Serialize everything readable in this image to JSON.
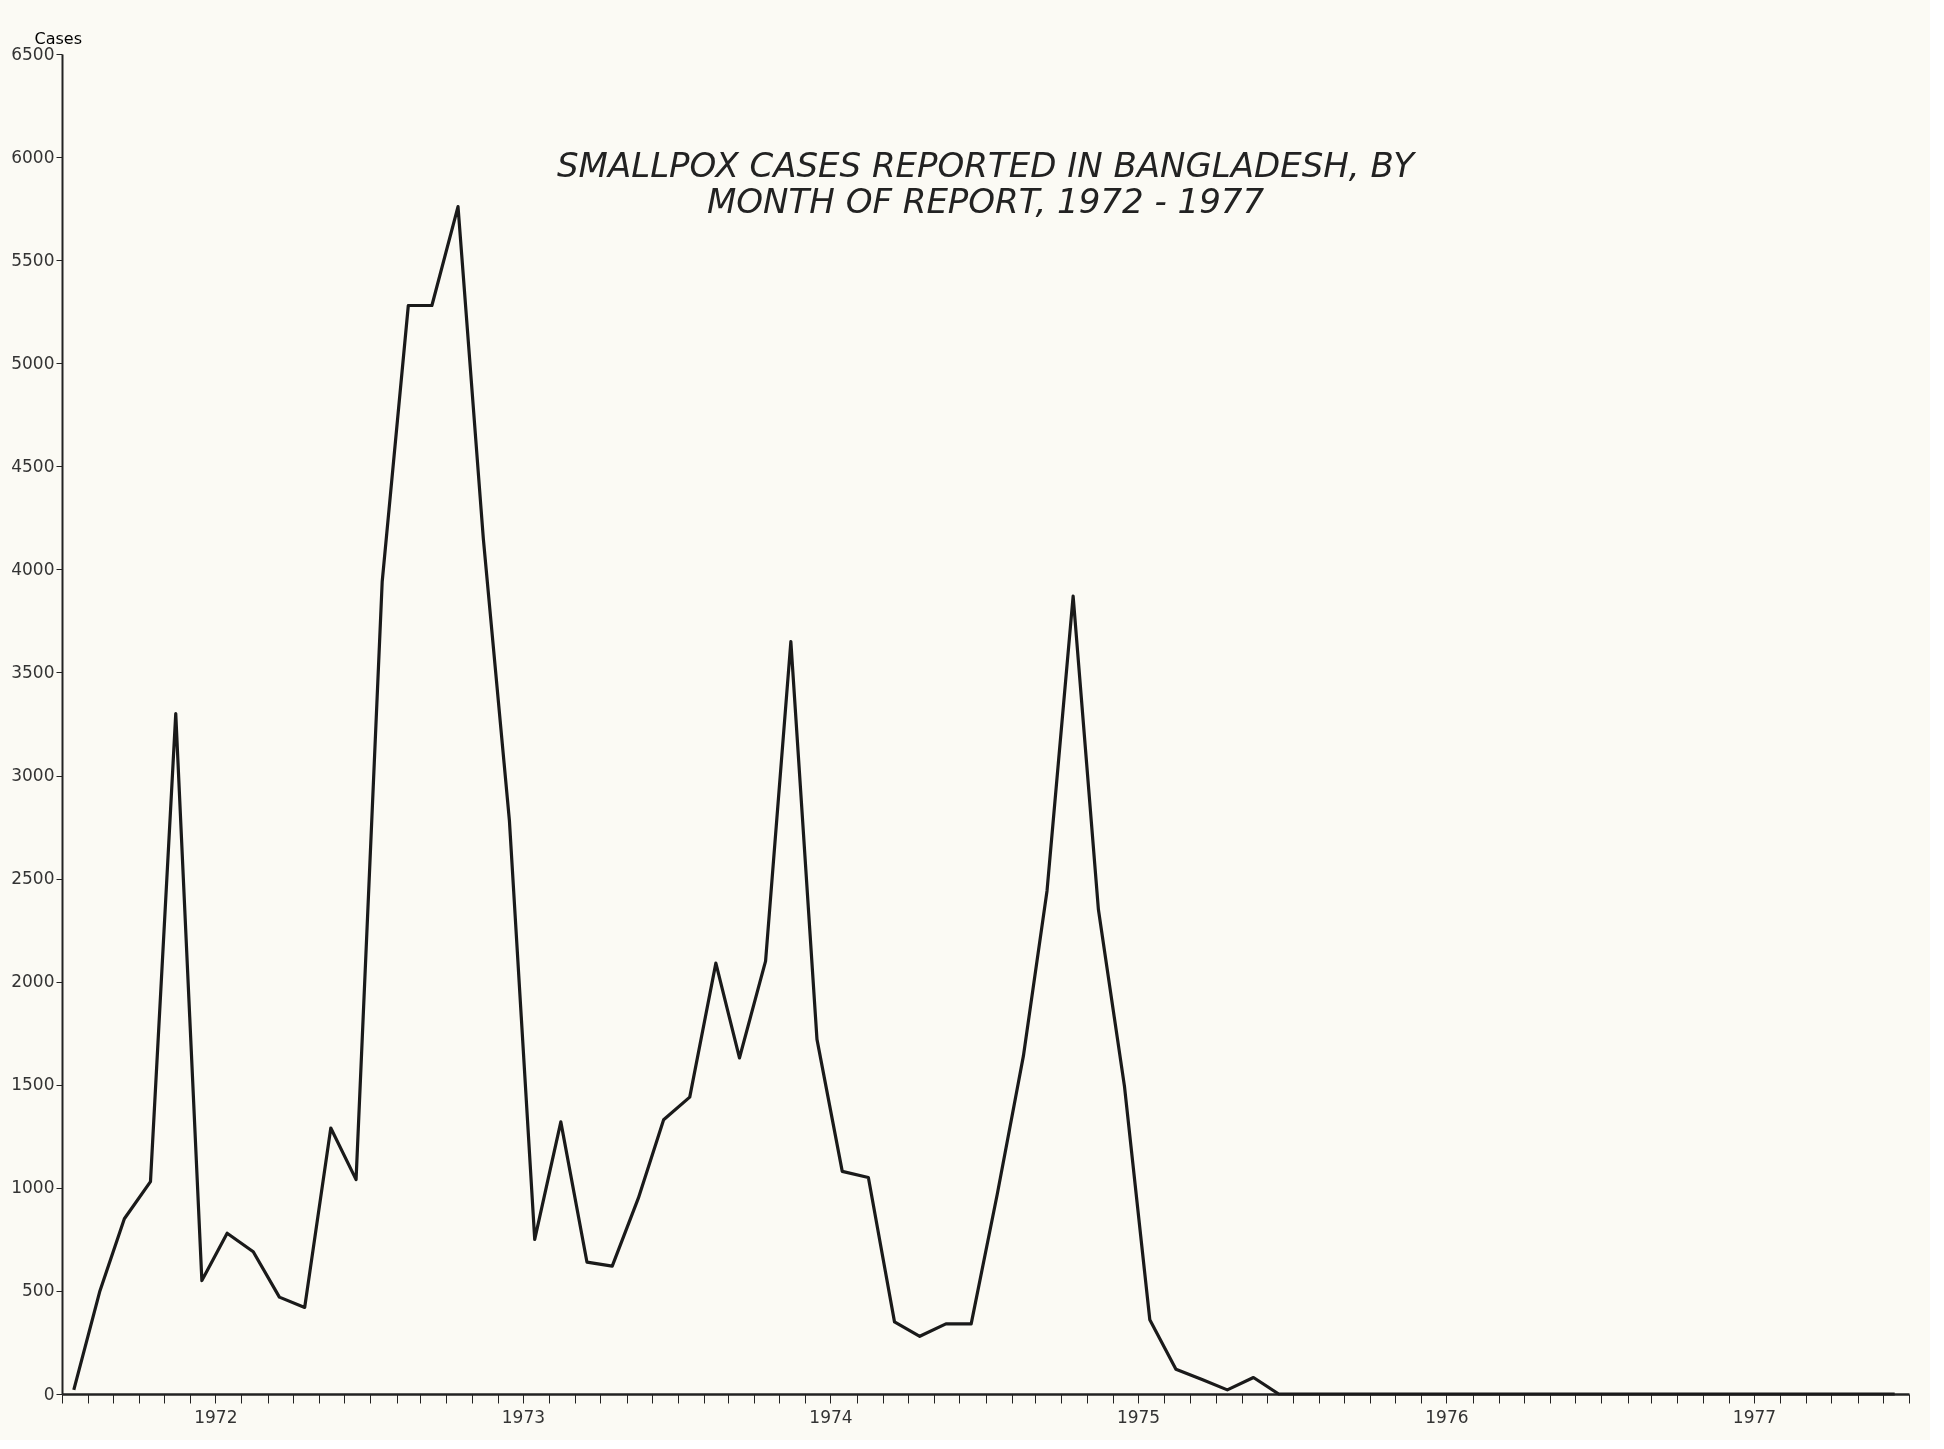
{
  "chart_data": {
    "type": "line",
    "title": [
      "SMALLPOX CASES REPORTED IN BANGLADESH, BY",
      "MONTH OF REPORT, 1972 - 1977"
    ],
    "ylabel": "Cases",
    "x": [
      "1972-01-15",
      "1972-02-15",
      "1972-03-15",
      "1972-04-15",
      "1972-05-15",
      "1972-06-15",
      "1972-07-15",
      "1972-08-15",
      "1972-09-15",
      "1972-10-15",
      "1972-11-15",
      "1972-12-15",
      "1973-01-15",
      "1973-02-15",
      "1973-03-15",
      "1973-04-15",
      "1973-05-15",
      "1973-06-15",
      "1973-07-15",
      "1973-08-15",
      "1973-09-15",
      "1973-10-15",
      "1973-11-15",
      "1973-12-15",
      "1974-01-15",
      "1974-02-15",
      "1974-03-15",
      "1974-04-15",
      "1974-05-15",
      "1974-06-15",
      "1974-07-15",
      "1974-08-15",
      "1974-09-15",
      "1974-10-15",
      "1974-11-15",
      "1974-12-15",
      "1975-01-15",
      "1975-02-15",
      "1975-03-15",
      "1975-04-15",
      "1975-05-15",
      "1975-06-15",
      "1975-07-15",
      "1975-08-15",
      "1975-09-15",
      "1975-10-15",
      "1975-11-15",
      "1975-12-15",
      "1976-01-15",
      "1976-02-15",
      "1976-03-15",
      "1976-04-15",
      "1976-05-15",
      "1976-06-15",
      "1976-07-15",
      "1976-08-15",
      "1976-09-15",
      "1976-10-15",
      "1976-11-15",
      "1976-12-15",
      "1977-01-15",
      "1977-02-15",
      "1977-03-15",
      "1977-04-15",
      "1977-05-15",
      "1977-06-15",
      "1977-07-15",
      "1977-08-15",
      "1977-09-15",
      "1977-10-15",
      "1977-11-15",
      "1977-12-15"
    ],
    "series": [
      {
        "color": "#1a1a1a",
        "values": [
          20,
          500,
          850,
          1030,
          3300,
          550,
          780,
          690,
          470,
          420,
          1290,
          1040,
          3940,
          5280,
          5280,
          5760,
          4150,
          2780,
          750,
          1320,
          640,
          620,
          950,
          1330,
          1440,
          2090,
          1630,
          2100,
          3650,
          1720,
          1080,
          1050,
          350,
          280,
          340,
          340,
          970,
          1640,
          2440,
          3870,
          2350,
          1490,
          360,
          120,
          70,
          20,
          80,
          0,
          0,
          0,
          0,
          0,
          0,
          0,
          0,
          0,
          0,
          0,
          0,
          0,
          0,
          0,
          0,
          0,
          0,
          0,
          0,
          0,
          0,
          0,
          0,
          0
        ]
      }
    ],
    "ylim": [
      0,
      6500
    ],
    "yticks": [
      0,
      500,
      1000,
      1500,
      2000,
      2500,
      3000,
      3500,
      4000,
      4500,
      5000,
      5500,
      6000,
      6500
    ],
    "xlim": [
      "1972-01-01",
      "1978-01-01"
    ],
    "xticks": [
      {
        "value": "1972-01-01",
        "label": null
      },
      {
        "value": "1972-02-01",
        "label": null
      },
      {
        "value": "1972-03-01",
        "label": null
      },
      {
        "value": "1972-04-01",
        "label": null
      },
      {
        "value": "1972-05-01",
        "label": null
      },
      {
        "value": "1972-06-01",
        "label": null
      },
      {
        "value": "1972-07-01",
        "label": "1972"
      },
      {
        "value": "1972-08-01",
        "label": null
      },
      {
        "value": "1972-09-01",
        "label": null
      },
      {
        "value": "1972-10-01",
        "label": null
      },
      {
        "value": "1972-11-01",
        "label": null
      },
      {
        "value": "1972-12-01",
        "label": null
      },
      {
        "value": "1973-01-01",
        "label": null
      },
      {
        "value": "1973-02-01",
        "label": null
      },
      {
        "value": "1973-03-01",
        "label": null
      },
      {
        "value": "1973-04-01",
        "label": null
      },
      {
        "value": "1973-05-01",
        "label": null
      },
      {
        "value": "1973-06-01",
        "label": null
      },
      {
        "value": "1973-07-01",
        "label": "1973"
      },
      {
        "value": "1973-08-01",
        "label": null
      },
      {
        "value": "1973-09-01",
        "label": null
      },
      {
        "value": "1973-10-01",
        "label": null
      },
      {
        "value": "1973-11-01",
        "label": null
      },
      {
        "value": "1973-12-01",
        "label": null
      },
      {
        "value": "1974-01-01",
        "label": null
      },
      {
        "value": "1974-02-01",
        "label": null
      },
      {
        "value": "1974-03-01",
        "label": null
      },
      {
        "value": "1974-04-01",
        "label": null
      },
      {
        "value": "1974-05-01",
        "label": null
      },
      {
        "value": "1974-06-01",
        "label": null
      },
      {
        "value": "1974-07-01",
        "label": "1974"
      },
      {
        "value": "1974-08-01",
        "label": null
      },
      {
        "value": "1974-09-01",
        "label": null
      },
      {
        "value": "1974-10-01",
        "label": null
      },
      {
        "value": "1974-11-01",
        "label": null
      },
      {
        "value": "1974-12-01",
        "label": null
      },
      {
        "value": "1975-01-01",
        "label": null
      },
      {
        "value": "1975-02-01",
        "label": null
      },
      {
        "value": "1975-03-01",
        "label": null
      },
      {
        "value": "1975-04-01",
        "label": null
      },
      {
        "value": "1975-05-01",
        "label": null
      },
      {
        "value": "1975-06-01",
        "label": null
      },
      {
        "value": "1975-07-01",
        "label": "1975"
      },
      {
        "value": "1975-08-01",
        "label": null
      },
      {
        "value": "1975-09-01",
        "label": null
      },
      {
        "value": "1975-10-01",
        "label": null
      },
      {
        "value": "1975-11-01",
        "label": null
      },
      {
        "value": "1975-12-01",
        "label": null
      },
      {
        "value": "1976-01-01",
        "label": null
      },
      {
        "value": "1976-02-01",
        "label": null
      },
      {
        "value": "1976-03-01",
        "label": null
      },
      {
        "value": "1976-04-01",
        "label": null
      },
      {
        "value": "1976-05-01",
        "label": null
      },
      {
        "value": "1976-06-01",
        "label": null
      },
      {
        "value": "1976-07-01",
        "label": "1976"
      },
      {
        "value": "1976-08-01",
        "label": null
      },
      {
        "value": "1976-09-01",
        "label": null
      },
      {
        "value": "1976-10-01",
        "label": null
      },
      {
        "value": "1976-11-01",
        "label": null
      },
      {
        "value": "1976-12-01",
        "label": null
      },
      {
        "value": "1977-01-01",
        "label": null
      },
      {
        "value": "1977-02-01",
        "label": null
      },
      {
        "value": "1977-03-01",
        "label": null
      },
      {
        "value": "1977-04-01",
        "label": null
      },
      {
        "value": "1977-05-01",
        "label": null
      },
      {
        "value": "1977-06-01",
        "label": null
      },
      {
        "value": "1977-07-01",
        "label": "1977"
      },
      {
        "value": "1977-08-01",
        "label": null
      },
      {
        "value": "1977-09-01",
        "label": null
      },
      {
        "value": "1977-10-01",
        "label": null
      },
      {
        "value": "1977-11-01",
        "label": null
      },
      {
        "value": "1977-12-01",
        "label": null
      },
      {
        "value": "1978-01-01",
        "label": null
      }
    ],
    "grid": false,
    "legend": false,
    "marker": "none",
    "line_style": "solid"
  }
}
